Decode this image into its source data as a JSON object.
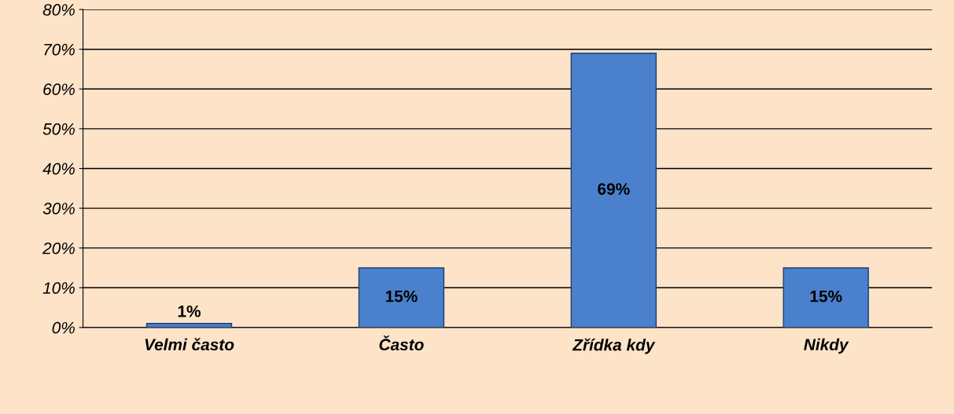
{
  "chart_data": {
    "type": "bar",
    "categories": [
      "Velmi často",
      "Často",
      "Zřídka kdy",
      "Nikdy"
    ],
    "values": [
      1,
      15,
      69,
      15
    ],
    "color": "#4a80cc",
    "ylim": [
      0,
      80
    ],
    "yticks": [
      {
        "value": 0,
        "label": "0%"
      },
      {
        "value": 10,
        "label": "10%"
      },
      {
        "value": 20,
        "label": "20%"
      },
      {
        "value": 30,
        "label": "30%"
      },
      {
        "value": 40,
        "label": "40%"
      },
      {
        "value": 50,
        "label": "50%"
      },
      {
        "value": 60,
        "label": "60%"
      },
      {
        "value": 70,
        "label": "70%"
      },
      {
        "value": 80,
        "label": "80%"
      }
    ],
    "value_labels": [
      "1%",
      "15%",
      "69%",
      "15%"
    ],
    "grid": "y"
  }
}
